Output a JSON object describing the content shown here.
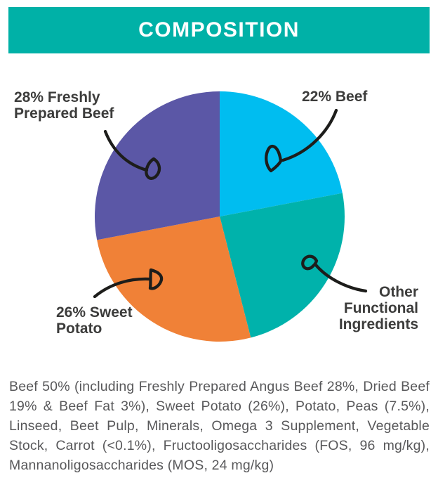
{
  "header": {
    "title": "COMPOSITION"
  },
  "colors": {
    "header_bg": "#00b1a7",
    "header_text": "#ffffff",
    "text_dark": "#3c3c3b",
    "text_body": "#58585a",
    "arrow": "#1d1d1b",
    "background": "#ffffff"
  },
  "chart_data": {
    "type": "pie",
    "title": "COMPOSITION",
    "direction": "clockwise",
    "start_angle_deg": 0,
    "legend_position": "callout-labels",
    "slices": [
      {
        "name": "beef",
        "label": "Beef",
        "value_pct": 22,
        "color": "#00bdf0"
      },
      {
        "name": "other-functional-ingredients",
        "label": "Other Functional Ingredients",
        "value_pct": 24,
        "color": "#00b2ab"
      },
      {
        "name": "sweet-potato",
        "label": "Sweet Potato",
        "value_pct": 26,
        "color": "#f08137"
      },
      {
        "name": "freshly-prepared-beef",
        "label": "Freshly Prepared Beef",
        "value_pct": 28,
        "color": "#5b57a6"
      }
    ],
    "callouts": [
      {
        "id": "freshly-prepared-beef",
        "lines": [
          "28% Freshly",
          "Prepared Beef"
        ],
        "align": "left"
      },
      {
        "id": "beef",
        "lines": [
          "22% Beef"
        ],
        "align": "left"
      },
      {
        "id": "sweet-potato",
        "lines": [
          "26% Sweet",
          "Potato"
        ],
        "align": "left"
      },
      {
        "id": "other-functional-ingredients",
        "lines": [
          "Other",
          "Functional",
          "Ingredients"
        ],
        "align": "right"
      }
    ]
  },
  "footer": {
    "composition_text": "Beef 50% (including Freshly Prepared Angus Beef 28%, Dried Beef 19% & Beef Fat 3%), Sweet Potato (26%), Potato, Peas (7.5%), Linseed, Beet Pulp, Minerals, Omega 3 Supplement, Vegetable Stock, Carrot (<0.1%), Fructooligosaccharides (FOS, 96 mg/kg), Mannanoligosaccharides (MOS, 24 mg/kg)"
  }
}
